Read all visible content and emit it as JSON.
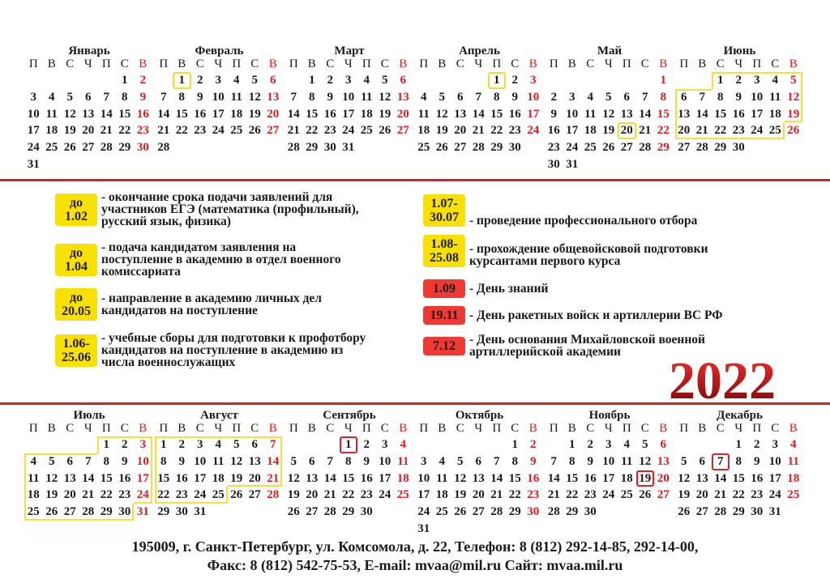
{
  "year": 2022,
  "year_label": "2022",
  "weekdays": [
    "П",
    "В",
    "С",
    "Ч",
    "П",
    "С",
    "В"
  ],
  "colors": {
    "accent_red": "#e01b22",
    "highlight_yellow": "#f8e000",
    "highlight_red": "#ee3a33"
  },
  "months": [
    {
      "name": "Январь",
      "first_weekday": 6,
      "days": 31
    },
    {
      "name": "Февраль",
      "first_weekday": 2,
      "days": 28
    },
    {
      "name": "Март",
      "first_weekday": 2,
      "days": 31
    },
    {
      "name": "Апрель",
      "first_weekday": 5,
      "days": 30
    },
    {
      "name": "Май",
      "first_weekday": 7,
      "days": 31
    },
    {
      "name": "Июнь",
      "first_weekday": 3,
      "days": 30
    },
    {
      "name": "Июль",
      "first_weekday": 5,
      "days": 31
    },
    {
      "name": "Август",
      "first_weekday": 1,
      "days": 31
    },
    {
      "name": "Сентябрь",
      "first_weekday": 4,
      "days": 30
    },
    {
      "name": "Октябрь",
      "first_weekday": 6,
      "days": 31
    },
    {
      "name": "Ноябрь",
      "first_weekday": 2,
      "days": 30
    },
    {
      "name": "Декабрь",
      "first_weekday": 4,
      "days": 31
    }
  ],
  "highlights": [
    {
      "month": 2,
      "from": 1,
      "to": 1,
      "color": "yellow"
    },
    {
      "month": 4,
      "from": 1,
      "to": 1,
      "color": "yellow"
    },
    {
      "month": 5,
      "from": 20,
      "to": 20,
      "color": "yellow"
    },
    {
      "month": 6,
      "from": 1,
      "to": 25,
      "color": "yellow"
    },
    {
      "month": 7,
      "from": 1,
      "to": 30,
      "color": "yellow"
    },
    {
      "month": 8,
      "from": 1,
      "to": 25,
      "color": "yellow"
    },
    {
      "month": 9,
      "from": 1,
      "to": 1,
      "color": "red"
    },
    {
      "month": 11,
      "from": 19,
      "to": 19,
      "color": "red"
    },
    {
      "month": 12,
      "from": 7,
      "to": 7,
      "color": "red"
    }
  ],
  "legend": {
    "left": [
      {
        "badge": [
          "до",
          "1.02"
        ],
        "color": "yellow",
        "text": "- окончание срока подачи заявлений для\nучастников ЕГЭ (математика (профильный),\nрусский язык, физика)"
      },
      {
        "badge": [
          "до",
          "1.04"
        ],
        "color": "yellow",
        "text": "- подача кандидатом заявления на\nпоступление в академию в отдел военного\nкомиссариата"
      },
      {
        "badge": [
          "до",
          "20.05"
        ],
        "color": "yellow",
        "text": "- направление в академию личных дел\nкандидатов на поступление"
      },
      {
        "badge": [
          "1.06-",
          "25.06"
        ],
        "color": "yellow",
        "text": "- учебные сборы для подготовки к профотбору\nкандидатов на поступление в академию из\nчисла военнослужащих"
      }
    ],
    "right": [
      {
        "badge": [
          "1.07-",
          "30.07"
        ],
        "color": "yellow",
        "text": "- проведение  профессионального отбора"
      },
      {
        "badge": [
          "1.08-",
          "25.08"
        ],
        "color": "yellow",
        "text": "- прохождение общевойсковой подготовки\nкурсантами первого курса"
      },
      {
        "badge": [
          "1.09"
        ],
        "color": "red",
        "text": "- День знаний"
      },
      {
        "badge": [
          "19.11"
        ],
        "color": "red",
        "text": "- День ракетных войск и артиллерии ВС РФ"
      },
      {
        "badge": [
          "7.12"
        ],
        "color": "red",
        "text": "- День основания Михайловской военной\nартиллерийской академии"
      }
    ]
  },
  "footer": {
    "line1": "195009, г. Санкт-Петербург, ул. Комсомола, д. 22, Телефон: 8 (812) 292-14-85, 292-14-00,",
    "line2": "Факс: 8 (812) 542-75-53, E-mail: mvaa@mil.ru  Сайт:  mvaa.mil.ru"
  }
}
